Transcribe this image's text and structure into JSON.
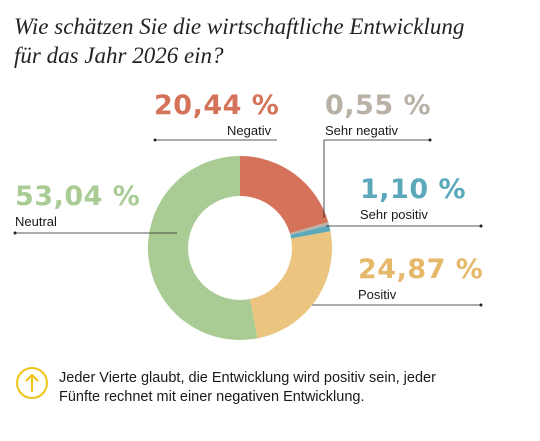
{
  "title": {
    "line1": "Wie schätzen Sie die wirtschaftliche Entwicklung",
    "line2": "für das Jahr 2026 ein?"
  },
  "chart_data": {
    "type": "pie",
    "donut": true,
    "slices": [
      {
        "label": "Negativ",
        "value": 20.44,
        "value_text": "20,44 %",
        "color": "#d4735a",
        "label_color": "#d4735a"
      },
      {
        "label": "Sehr negativ",
        "value": 0.55,
        "value_text": "0,55 %",
        "color": "#b9b1a6",
        "label_color": "#b9b1a6"
      },
      {
        "label": "Sehr positiv",
        "value": 1.1,
        "value_text": "1,10 %",
        "color": "#5aa8ba",
        "label_color": "#5aa8ba"
      },
      {
        "label": "Positiv",
        "value": 24.87,
        "value_text": "24,87 %",
        "color": "#ebc47f",
        "label_color": "#e6b86a"
      },
      {
        "label": "Neutral",
        "value": 53.04,
        "value_text": "53,04 %",
        "color": "#a8cc94",
        "label_color": "#a8cc94"
      }
    ]
  },
  "note": {
    "icon": "arrow-up-circle-icon",
    "icon_color": "#f0c419",
    "line1": "Jeder Vierte glaubt, die Entwicklung wird positiv sein, jeder",
    "line2": "Fünfte rechnet mit einer negativen Entwicklung."
  }
}
